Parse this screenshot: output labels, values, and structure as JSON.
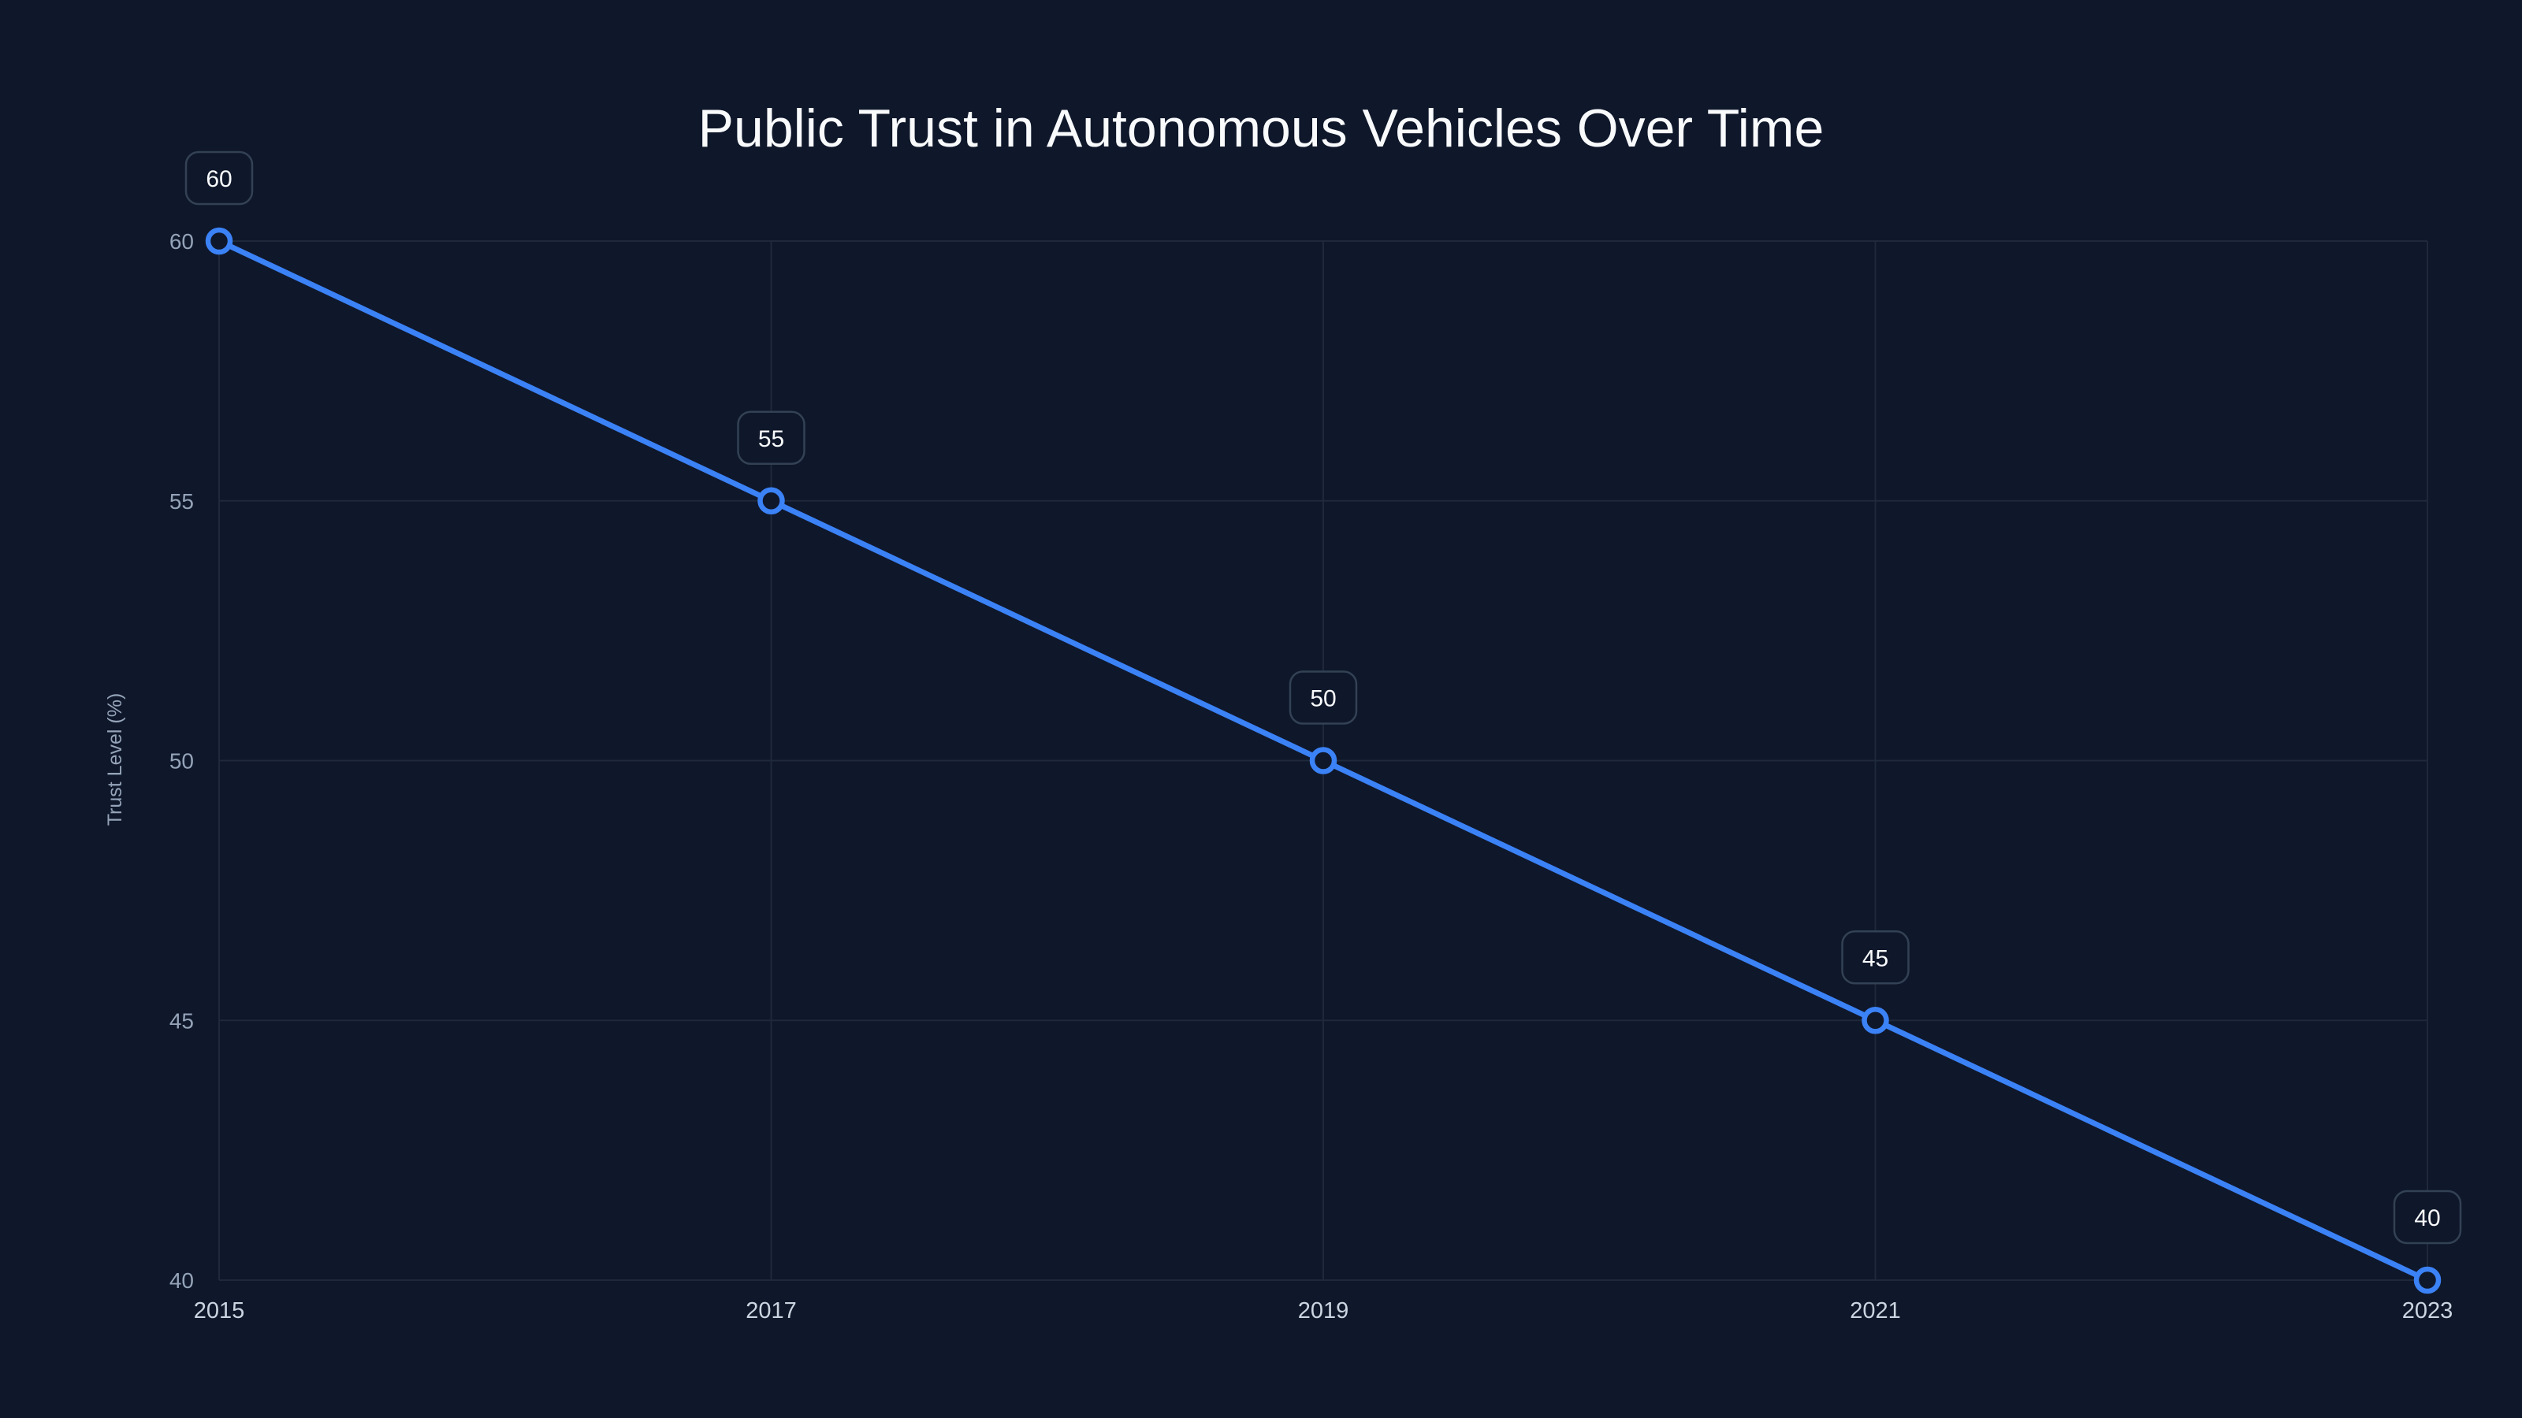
{
  "chart_data": {
    "type": "line",
    "title": "Public Trust in Autonomous Vehicles Over Time",
    "xlabel": "",
    "ylabel": "Trust Level (%)",
    "x": [
      "2015",
      "2017",
      "2019",
      "2021",
      "2023"
    ],
    "series": [
      {
        "name": "Trust Level (%)",
        "values": [
          60,
          55,
          50,
          45,
          40
        ],
        "color": "#3b82f6"
      }
    ],
    "yticks": [
      40,
      45,
      50,
      55,
      60
    ],
    "ylim": [
      40,
      60
    ],
    "grid": true,
    "data_labels": true,
    "background": "#0f172a"
  }
}
